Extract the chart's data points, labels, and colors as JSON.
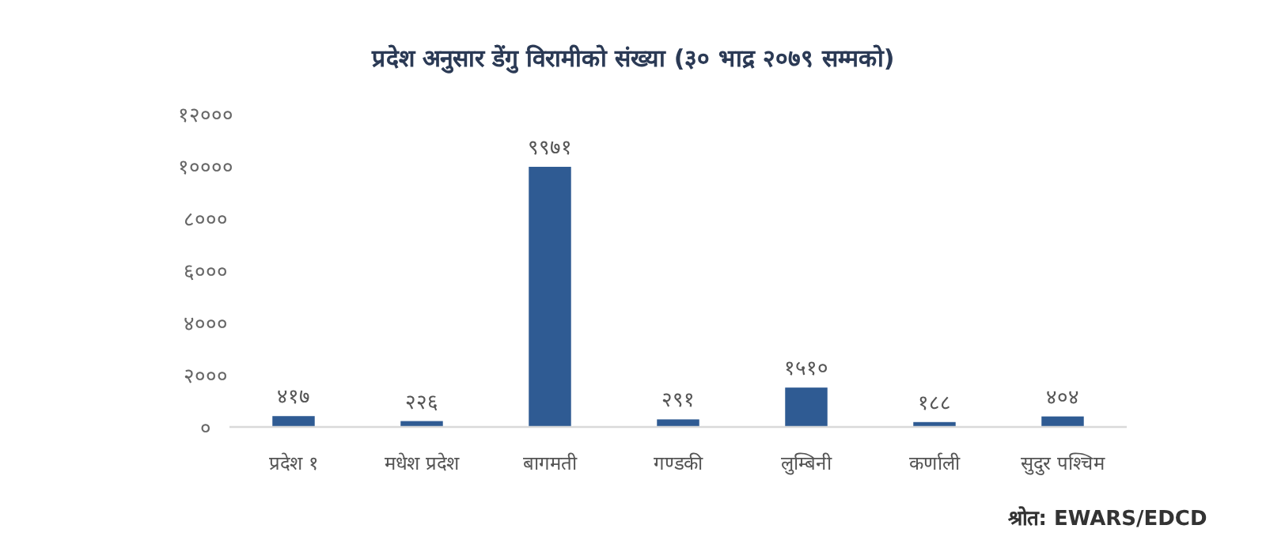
{
  "chart_data": {
    "type": "bar",
    "title": "प्रदेश अनुसार डेंगु विरामीको संख्या (३० भाद्र २०७९ सम्मको)",
    "categories": [
      "प्रदेश १",
      "मधेश प्रदेश",
      "बागमती",
      "गण्डकी",
      "लुम्बिनी",
      "कर्णाली",
      "सुदुर पश्चिम"
    ],
    "values": [
      417,
      226,
      9971,
      291,
      1510,
      188,
      404
    ],
    "value_labels": [
      "४१७",
      "२२६",
      "९९७१",
      "२९१",
      "१५१०",
      "१८८",
      "४०४"
    ],
    "color": "#2f5b93",
    "ylim": [
      0,
      12000
    ],
    "yticks": [
      {
        "value": 0,
        "label": "०"
      },
      {
        "value": 2000,
        "label": "२०००"
      },
      {
        "value": 4000,
        "label": "४०००"
      },
      {
        "value": 6000,
        "label": "६०००"
      },
      {
        "value": 8000,
        "label": "८०००"
      },
      {
        "value": 10000,
        "label": "१००००"
      },
      {
        "value": 12000,
        "label": "१२०००"
      }
    ],
    "annotations": [
      "श्रोत: EWARS/EDCD"
    ]
  }
}
